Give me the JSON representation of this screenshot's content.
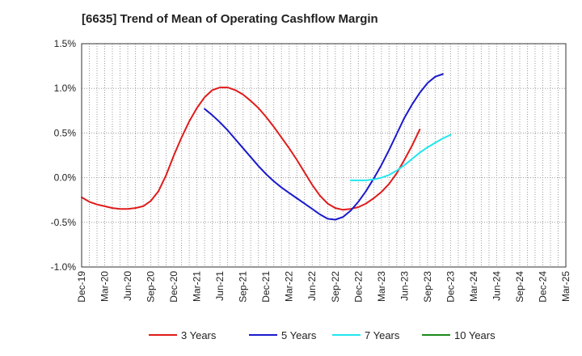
{
  "chart_data": {
    "type": "line",
    "title": "[6635]  Trend of Mean of Operating Cashflow Margin",
    "xlabel": "",
    "ylabel": "",
    "ylim": [
      -1.0,
      1.5
    ],
    "y_ticks": [
      -1.0,
      -0.5,
      0.0,
      0.5,
      1.0,
      1.5
    ],
    "y_tick_labels": [
      "-1.0%",
      "-0.5%",
      "0.0%",
      "0.5%",
      "1.0%",
      "1.5%"
    ],
    "x_tick_labels": [
      "Dec-19",
      "Mar-20",
      "Jun-20",
      "Sep-20",
      "Dec-20",
      "Mar-21",
      "Jun-21",
      "Sep-21",
      "Dec-21",
      "Mar-22",
      "Jun-22",
      "Sep-22",
      "Dec-22",
      "Mar-23",
      "Jun-23",
      "Sep-23",
      "Dec-23",
      "Mar-24",
      "Jun-24",
      "Sep-24",
      "Dec-24",
      "Mar-25"
    ],
    "grid": true,
    "legend_position": "bottom",
    "series": [
      {
        "name": "3 Years",
        "color": "#e01b1b",
        "start_index": 0,
        "values": [
          -0.22,
          -0.27,
          -0.3,
          -0.32,
          -0.34,
          -0.35,
          -0.35,
          -0.34,
          -0.32,
          -0.26,
          -0.15,
          0.03,
          0.25,
          0.45,
          0.63,
          0.78,
          0.9,
          0.98,
          1.01,
          1.01,
          0.98,
          0.93,
          0.86,
          0.78,
          0.68,
          0.57,
          0.45,
          0.33,
          0.2,
          0.06,
          -0.08,
          -0.2,
          -0.29,
          -0.34,
          -0.36,
          -0.35,
          -0.33,
          -0.29,
          -0.23,
          -0.16,
          -0.07,
          0.05,
          0.2,
          0.36,
          0.54
        ]
      },
      {
        "name": "5 Years",
        "color": "#1a1acc",
        "start_index": 16,
        "values": [
          0.77,
          0.7,
          0.62,
          0.53,
          0.43,
          0.33,
          0.23,
          0.13,
          0.04,
          -0.04,
          -0.11,
          -0.17,
          -0.23,
          -0.29,
          -0.35,
          -0.41,
          -0.46,
          -0.47,
          -0.44,
          -0.37,
          -0.27,
          -0.15,
          -0.01,
          0.14,
          0.31,
          0.49,
          0.67,
          0.82,
          0.95,
          1.06,
          1.13,
          1.16
        ]
      },
      {
        "name": "7 Years",
        "color": "#22e5ee",
        "start_index": 35,
        "values": [
          -0.03,
          -0.03,
          -0.03,
          -0.02,
          0.0,
          0.03,
          0.08,
          0.14,
          0.21,
          0.28,
          0.34,
          0.39,
          0.44,
          0.48
        ]
      },
      {
        "name": "10 Years",
        "color": "#1a8a1a",
        "start_index": 0,
        "values": []
      }
    ]
  }
}
